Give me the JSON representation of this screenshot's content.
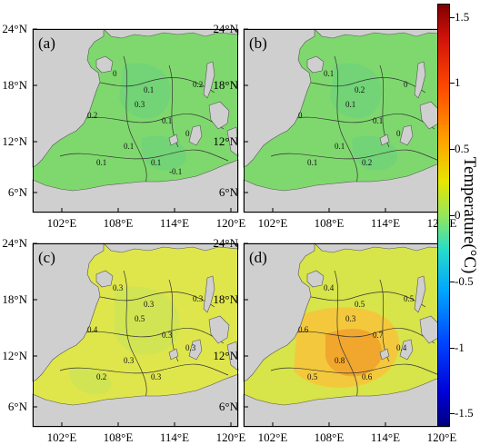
{
  "panels": [
    {
      "id": "a",
      "label": "(a)",
      "theme": "cool",
      "contour_labels": [
        "0",
        "0.1",
        "0.2",
        "0.1",
        "0.1",
        "0",
        "0.1",
        "0.1",
        "0.3",
        "0.2",
        "-0.1"
      ]
    },
    {
      "id": "b",
      "label": "(b)",
      "theme": "cool",
      "contour_labels": [
        "0.1",
        "0.2",
        "0",
        "0.1",
        "0.1",
        "0",
        "0.1",
        "0.2",
        "0.1",
        "0"
      ]
    },
    {
      "id": "c",
      "label": "(c)",
      "theme": "warm",
      "contour_labels": [
        "0.3",
        "0.3",
        "0.4",
        "0.3",
        "0.3",
        "0.3",
        "0.2",
        "0.3",
        "0.5",
        "0.3"
      ]
    },
    {
      "id": "d",
      "label": "(d)",
      "theme": "hot",
      "contour_labels": [
        "0.4",
        "0.5",
        "0.6",
        "0.7",
        "0.8",
        "0.4",
        "0.5",
        "0.6",
        "0.3",
        "0.5"
      ]
    }
  ],
  "axes": {
    "lat_ticks": [
      "24°N",
      "18°N",
      "12°N",
      "6°N"
    ],
    "lon_ticks": [
      "102°E",
      "108°E",
      "114°E",
      "120°E"
    ]
  },
  "colorbar": {
    "title": "Temperature(°C)",
    "ticks": [
      "1.5",
      "1",
      "0.5",
      "0",
      "-0.5",
      "-1",
      "-1.5"
    ],
    "min": -1.6,
    "max": 1.6
  },
  "colors": {
    "land": "#cfcfcf",
    "cool": "#7fd86e",
    "cool_alt": "#68d27f",
    "warm": "#dfe64c",
    "warm_alt": "#c8e25a",
    "hot": "#f5c63b",
    "hot_core": "#f0a02a",
    "hot_edge": "#d7e44a"
  }
}
